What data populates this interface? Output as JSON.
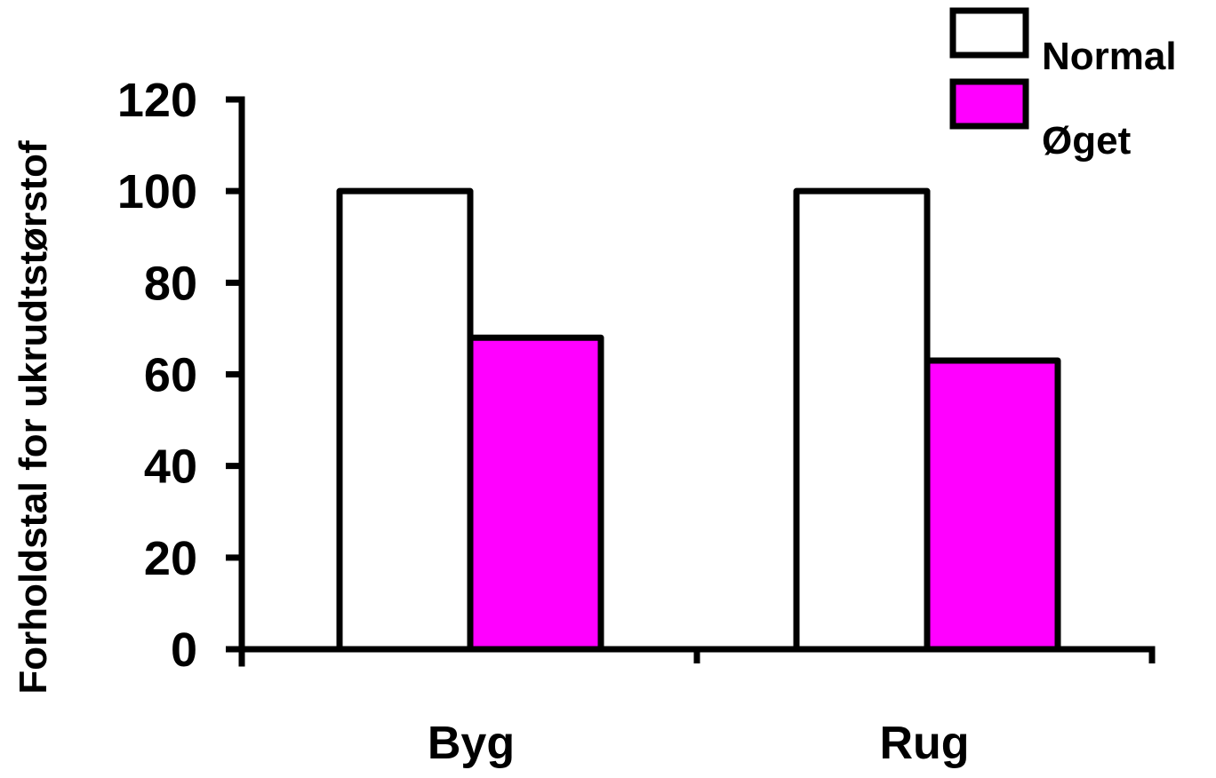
{
  "chart_data": {
    "type": "bar",
    "title": "",
    "xlabel": "",
    "ylabel": "Forholdstal for ukrudtstørstof",
    "categories": [
      "Byg",
      "Rug"
    ],
    "series": [
      {
        "name": "Normal",
        "color": "#ffffff",
        "values": [
          100,
          100
        ]
      },
      {
        "name": "Øget",
        "color": "#ff00ff",
        "values": [
          68,
          63
        ]
      }
    ],
    "ylim": [
      0,
      120
    ],
    "yticks": [
      0,
      20,
      40,
      60,
      80,
      100,
      120
    ],
    "ytick_labels": [
      "0",
      "20",
      "40",
      "60",
      "80",
      "100",
      "120"
    ],
    "grid": false,
    "legend_position": "top-right"
  }
}
